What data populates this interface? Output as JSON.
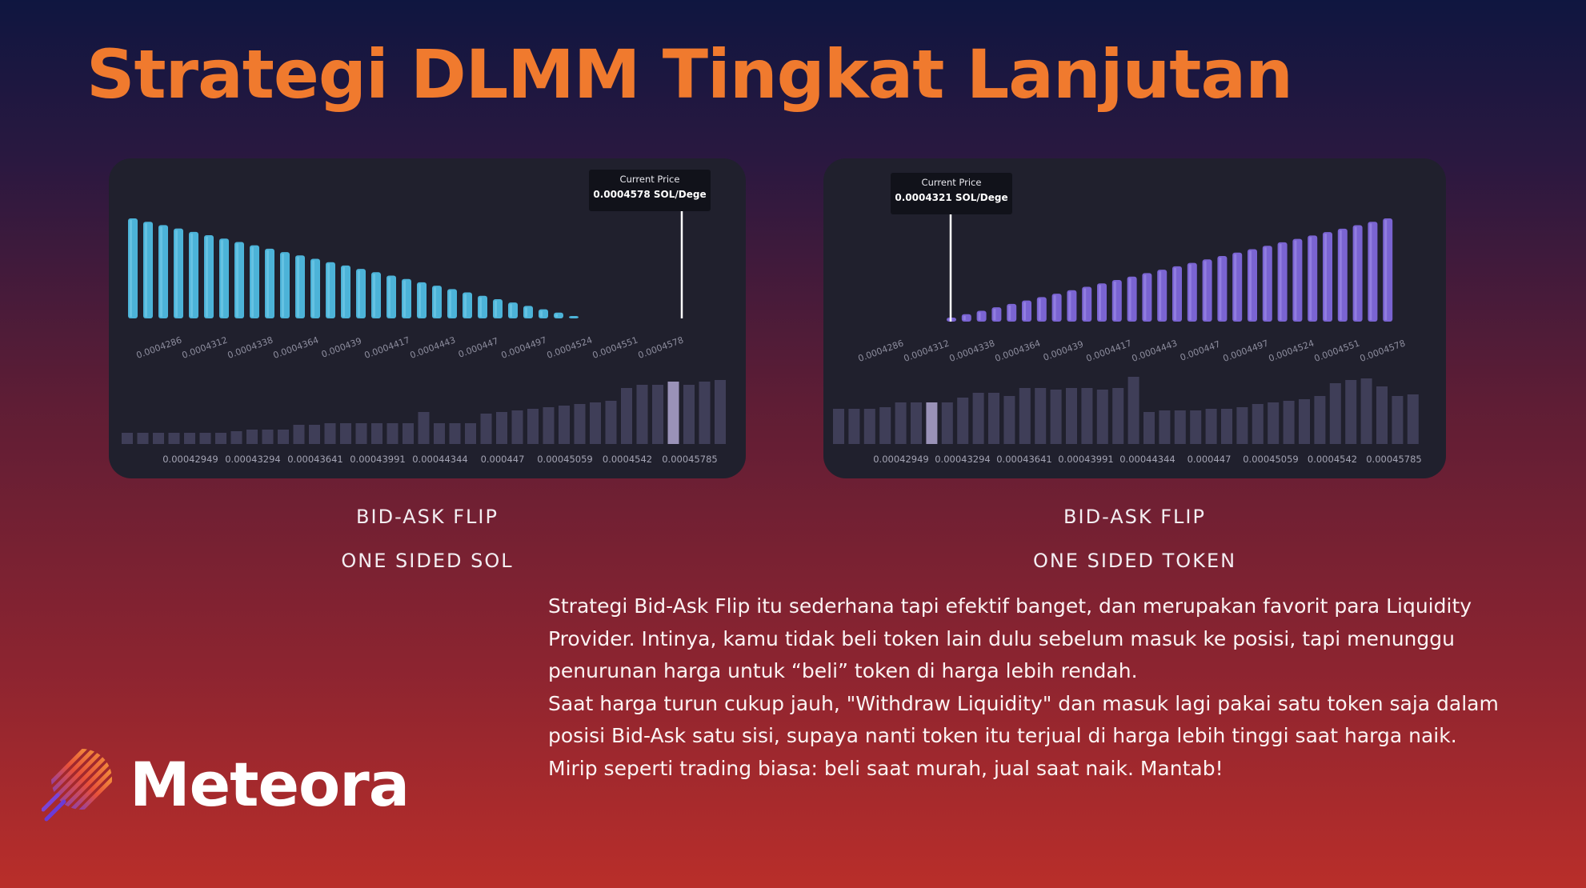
{
  "title": "Strategi DLMM Tingkat Lanjutan",
  "charts": [
    {
      "current_price_label": "Current Price",
      "current_price_value": "0.0004578 SOL/Dege",
      "strategy_label": "BID-ASK FLIP",
      "side_label": "ONE SIDED SOL",
      "bar_color": "#4cb3d8",
      "top_ticks": [
        "0.0004286",
        "0.0004312",
        "0.0004338",
        "0.0004364",
        "0.000439",
        "0.0004417",
        "0.0004443",
        "0.000447",
        "0.0004497",
        "0.0004524",
        "0.0004551",
        "0.0004578"
      ],
      "bottom_ticks": [
        "0.00042949",
        "0.00043294",
        "0.00043641",
        "0.00043991",
        "0.00044344",
        "0.000447",
        "0.00045059",
        "0.0004542",
        "0.00045785"
      ]
    },
    {
      "current_price_label": "Current Price",
      "current_price_value": "0.0004321 SOL/Dege",
      "strategy_label": "BID-ASK FLIP",
      "side_label": "ONE SIDED TOKEN",
      "bar_color": "#7a64d2",
      "top_ticks": [
        "0.0004286",
        "0.0004312",
        "0.0004338",
        "0.0004364",
        "0.000439",
        "0.0004417",
        "0.0004443",
        "0.000447",
        "0.0004497",
        "0.0004524",
        "0.0004551",
        "0.0004578"
      ],
      "bottom_ticks": [
        "0.00042949",
        "0.00043294",
        "0.00043641",
        "0.00043991",
        "0.00044344",
        "0.000447",
        "0.00045059",
        "0.0004542",
        "0.00045785"
      ]
    }
  ],
  "paragraphs": [
    "Strategi Bid-Ask Flip itu sederhana tapi efektif banget, dan merupakan favorit para Liquidity Provider. Intinya, kamu tidak beli token lain dulu sebelum masuk ke posisi, tapi menunggu penurunan harga untuk “beli” token di harga lebih rendah.",
    "Saat harga turun cukup jauh, \"Withdraw Liquidity\" dan masuk lagi pakai satu token saja dalam posisi Bid-Ask satu sisi, supaya nanti token itu terjual di harga lebih tinggi saat harga naik.",
    "Mirip seperti trading biasa: beli saat murah, jual saat naik. Mantab!"
  ],
  "brand": {
    "name": "Meteora",
    "accent": "#f07a2e"
  }
}
